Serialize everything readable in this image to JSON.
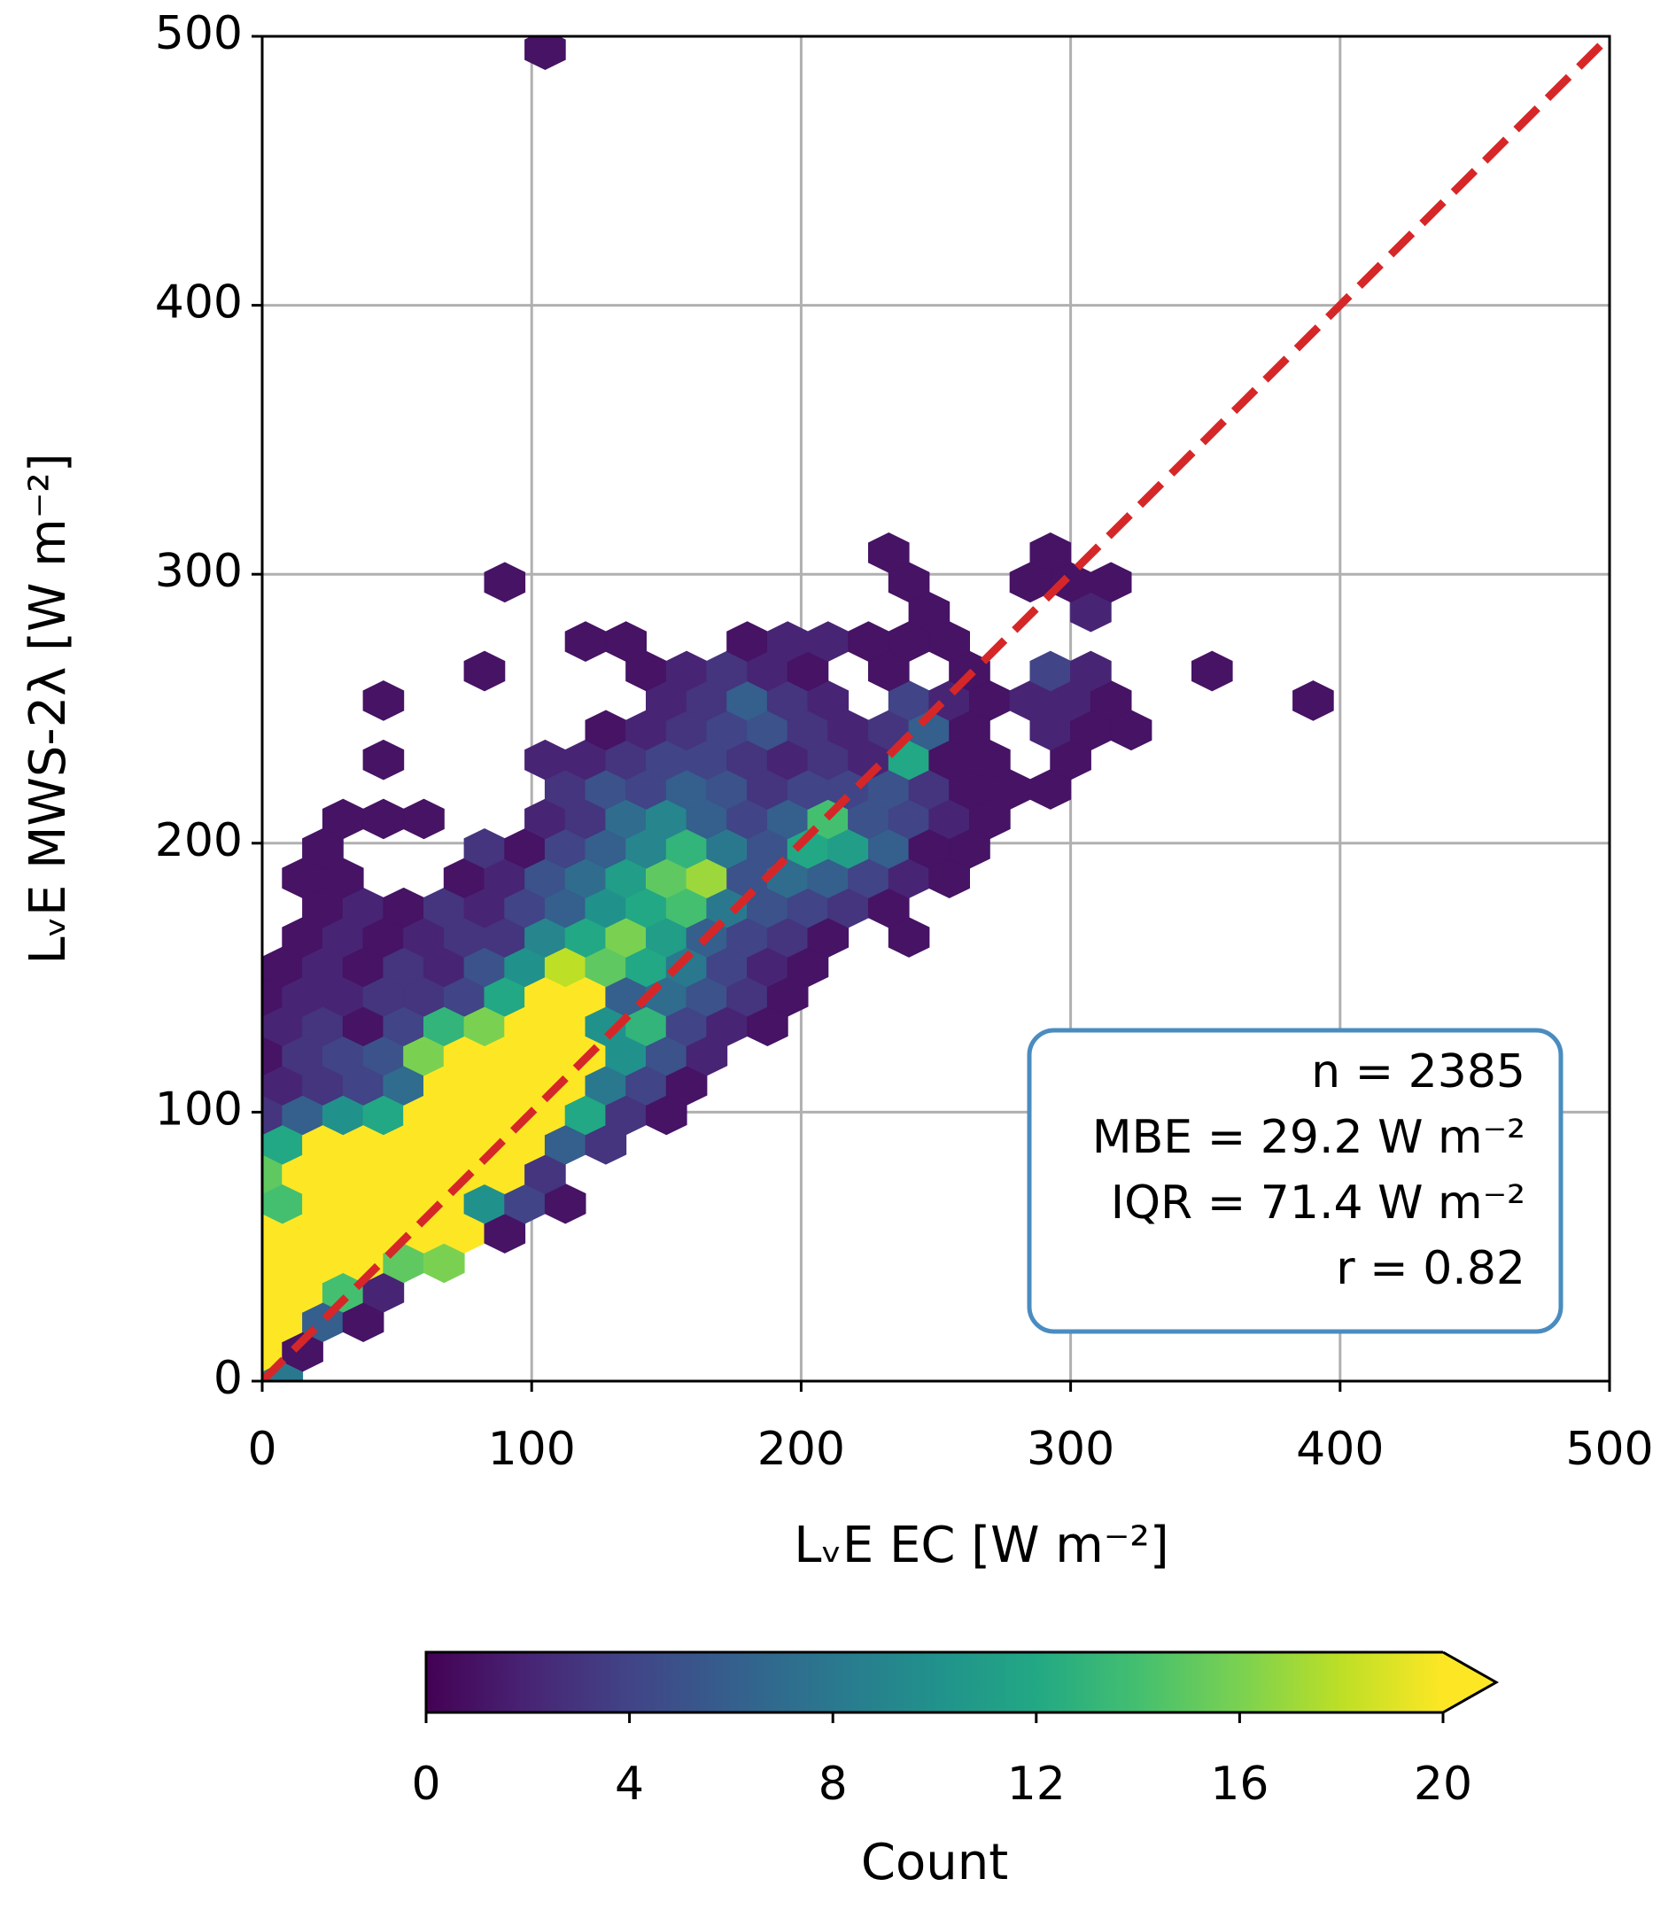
{
  "chart_data": {
    "type": "hexbin",
    "xlabel": "LᵥE EC [W m⁻²]",
    "ylabel": "LᵥE MWS-2λ [W m⁻²]",
    "xlim": [
      0,
      500
    ],
    "ylim": [
      0,
      500
    ],
    "xticks": [
      0,
      100,
      200,
      300,
      400,
      500
    ],
    "yticks": [
      0,
      100,
      200,
      300,
      400,
      500
    ],
    "grid": true,
    "reference_line": {
      "color": "#d62728",
      "style": "dashed"
    },
    "annotation": [
      "n = 2385",
      "MBE = 29.2 W m⁻²",
      "IQR = 71.4 W m⁻²",
      "r = 0.82"
    ],
    "annotation_box_color": "#4a8cc0",
    "x": [
      7.5,
      0,
      15,
      7.5,
      22.5,
      37.5,
      0,
      15,
      30,
      45,
      7.5,
      22.5,
      37.5,
      52.5,
      67.5,
      0,
      15,
      30,
      45,
      60,
      75,
      90,
      7.5,
      22.5,
      37.5,
      52.5,
      67.5,
      82.5,
      97.5,
      112.5,
      0,
      15,
      30,
      45,
      60,
      75,
      90,
      105,
      7.5,
      22.5,
      37.5,
      52.5,
      67.5,
      82.5,
      97.5,
      112.5,
      127.5,
      0,
      15,
      30,
      45,
      60,
      75,
      90,
      105,
      120,
      135,
      150,
      7.5,
      22.5,
      37.5,
      52.5,
      67.5,
      82.5,
      97.5,
      112.5,
      127.5,
      142.5,
      157.5,
      0,
      15,
      30,
      45,
      60,
      75,
      90,
      105,
      120,
      135,
      150,
      165,
      7.5,
      22.5,
      37.5,
      52.5,
      67.5,
      82.5,
      97.5,
      112.5,
      127.5,
      142.5,
      157.5,
      172.5,
      187.5,
      0,
      15,
      30,
      45,
      60,
      75,
      90,
      105,
      120,
      135,
      150,
      165,
      180,
      195,
      7.5,
      22.5,
      37.5,
      52.5,
      67.5,
      82.5,
      97.5,
      112.5,
      127.5,
      142.5,
      157.5,
      172.5,
      187.5,
      202.5,
      15,
      30,
      45,
      60,
      75,
      90,
      105,
      120,
      135,
      150,
      165,
      180,
      195,
      210,
      240,
      22.5,
      37.5,
      52.5,
      67.5,
      82.5,
      97.5,
      112.5,
      127.5,
      142.5,
      157.5,
      172.5,
      187.5,
      202.5,
      217.5,
      232.5,
      15,
      30,
      75,
      90,
      105,
      120,
      135,
      150,
      165,
      180,
      195,
      210,
      225,
      240,
      255,
      22.5,
      82.5,
      97.5,
      112.5,
      127.5,
      142.5,
      157.5,
      172.5,
      187.5,
      202.5,
      217.5,
      232.5,
      247.5,
      262.5,
      30,
      45,
      60,
      105,
      120,
      135,
      150,
      165,
      180,
      195,
      210,
      225,
      240,
      255,
      270,
      112.5,
      127.5,
      142.5,
      157.5,
      172.5,
      187.5,
      202.5,
      217.5,
      232.5,
      247.5,
      262.5,
      277.5,
      292.5,
      45,
      105,
      120,
      135,
      150,
      165,
      180,
      195,
      210,
      225,
      240,
      255,
      270,
      300,
      127.5,
      142.5,
      157.5,
      172.5,
      187.5,
      202.5,
      217.5,
      232.5,
      247.5,
      262.5,
      292.5,
      307.5,
      322.5,
      45,
      150,
      165,
      180,
      195,
      210,
      240,
      255,
      270,
      285,
      300,
      315,
      390,
      82.5,
      142.5,
      157.5,
      172.5,
      187.5,
      202.5,
      232.5,
      262.5,
      292.5,
      307.5,
      352.5,
      120,
      135,
      180,
      195,
      210,
      225,
      240,
      255,
      247.5,
      307.5,
      90,
      240,
      285,
      300,
      315,
      232.5,
      292.5,
      105
    ],
    "y": [
      0,
      11,
      11,
      22,
      22,
      22,
      33,
      33,
      33,
      33,
      44,
      44,
      44,
      44,
      44,
      55,
      55,
      55,
      55,
      55,
      55,
      55,
      66,
      66,
      66,
      66,
      66,
      66,
      66,
      66,
      77,
      77,
      77,
      77,
      77,
      77,
      77,
      77,
      88,
      88,
      88,
      88,
      88,
      88,
      88,
      88,
      88,
      99,
      99,
      99,
      99,
      99,
      99,
      99,
      99,
      99,
      99,
      99,
      110,
      110,
      110,
      110,
      110,
      110,
      110,
      110,
      110,
      110,
      110,
      121,
      121,
      121,
      121,
      121,
      121,
      121,
      121,
      121,
      121,
      121,
      121,
      132,
      132,
      132,
      132,
      132,
      132,
      132,
      132,
      132,
      132,
      132,
      132,
      132,
      143,
      143,
      143,
      143,
      143,
      143,
      143,
      143,
      143,
      143,
      143,
      143,
      143,
      143,
      154,
      154,
      154,
      154,
      154,
      154,
      154,
      154,
      154,
      154,
      154,
      154,
      154,
      154,
      165,
      165,
      165,
      165,
      165,
      165,
      165,
      165,
      165,
      165,
      165,
      165,
      165,
      165,
      165,
      176,
      176,
      176,
      176,
      176,
      176,
      176,
      176,
      176,
      176,
      176,
      176,
      176,
      176,
      176,
      187,
      187,
      187,
      187,
      187,
      187,
      187,
      187,
      187,
      187,
      187,
      187,
      187,
      187,
      187,
      198,
      198,
      198,
      198,
      198,
      198,
      198,
      198,
      198,
      198,
      198,
      198,
      198,
      198,
      209,
      209,
      209,
      209,
      209,
      209,
      209,
      209,
      209,
      209,
      209,
      209,
      209,
      209,
      209,
      220,
      220,
      220,
      220,
      220,
      220,
      220,
      220,
      220,
      220,
      220,
      220,
      220,
      231,
      231,
      231,
      231,
      231,
      231,
      231,
      231,
      231,
      231,
      231,
      231,
      231,
      231,
      242,
      242,
      242,
      242,
      242,
      242,
      242,
      242,
      242,
      242,
      242,
      242,
      242,
      253,
      253,
      253,
      253,
      253,
      253,
      253,
      253,
      253,
      253,
      253,
      253,
      253,
      264,
      264,
      264,
      264,
      264,
      264,
      264,
      264,
      264,
      264,
      264,
      275,
      275,
      275,
      275,
      275,
      275,
      275,
      275,
      286,
      286,
      297,
      297,
      297,
      297,
      297,
      308,
      308,
      495
    ],
    "values": [
      8,
      25,
      1,
      30,
      6,
      1,
      30,
      30,
      14,
      2,
      30,
      30,
      25,
      15,
      16,
      30,
      30,
      30,
      30,
      25,
      20,
      1,
      14,
      30,
      30,
      30,
      30,
      10,
      4,
      1,
      15,
      30,
      30,
      30,
      30,
      30,
      25,
      3,
      12,
      25,
      30,
      30,
      30,
      30,
      22,
      6,
      3,
      3,
      6,
      10,
      12,
      28,
      30,
      30,
      30,
      12,
      3,
      1,
      2,
      3,
      4,
      7,
      25,
      30,
      30,
      30,
      8,
      4,
      1,
      1,
      3,
      4,
      5,
      16,
      22,
      30,
      30,
      25,
      10,
      5,
      2,
      2,
      3,
      1,
      4,
      13,
      16,
      30,
      22,
      10,
      13,
      4,
      2,
      1,
      1,
      2,
      2,
      3,
      3,
      4,
      12,
      25,
      22,
      6,
      7,
      5,
      3,
      1,
      1,
      2,
      1,
      3,
      2,
      5,
      10,
      18,
      15,
      12,
      8,
      4,
      2,
      1,
      1,
      2,
      1,
      2,
      3,
      3,
      9,
      12,
      16,
      11,
      6,
      4,
      3,
      1,
      1,
      1,
      2,
      1,
      3,
      2,
      4,
      6,
      10,
      12,
      14,
      8,
      5,
      4,
      3,
      1,
      1,
      1,
      1,
      2,
      5,
      7,
      11,
      15,
      17,
      5,
      7,
      6,
      4,
      2,
      1,
      1,
      3,
      1,
      4,
      6,
      9,
      13,
      8,
      5,
      12,
      11,
      6,
      1,
      1,
      1,
      1,
      1,
      2,
      3,
      7,
      9,
      6,
      4,
      6,
      14,
      5,
      4,
      2,
      1,
      3,
      5,
      4,
      6,
      5,
      3,
      4,
      4,
      5,
      3,
      1,
      1,
      1,
      1,
      2,
      2,
      3,
      4,
      4,
      3,
      2,
      3,
      2,
      12,
      1,
      1,
      1,
      1,
      2,
      3,
      4,
      5,
      3,
      2,
      3,
      6,
      1,
      2,
      1,
      1,
      1,
      2,
      3,
      6,
      3,
      2,
      4,
      2,
      1,
      2,
      2,
      1,
      1,
      1,
      1,
      2,
      3,
      2,
      1,
      1,
      1,
      4,
      2,
      1,
      1,
      1,
      1,
      2,
      2,
      1,
      1,
      1,
      1,
      2,
      1,
      1,
      1,
      1,
      1,
      1,
      1,
      1
    ],
    "colorbar": {
      "label": "Count",
      "lim": [
        0,
        20
      ],
      "ticks": [
        0,
        4,
        8,
        12,
        16,
        20
      ],
      "extend": "max",
      "colors": [
        "#440154",
        "#482475",
        "#414487",
        "#355f8d",
        "#2a788e",
        "#21918c",
        "#22a884",
        "#44bf70",
        "#7ad151",
        "#bddf26",
        "#fde725"
      ]
    }
  }
}
